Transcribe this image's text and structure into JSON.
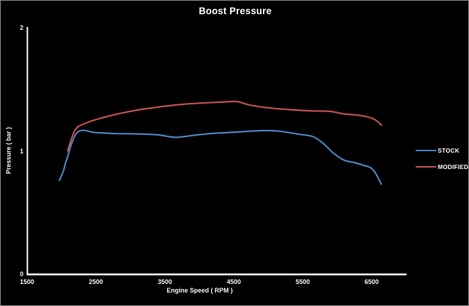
{
  "chart_data": {
    "type": "line",
    "title": "Boost Pressure",
    "xlabel": "Engine Speed ( RPM )",
    "ylabel": "Pressure ( bar )",
    "xlim": [
      1500,
      7000
    ],
    "ylim": [
      0,
      2
    ],
    "x_ticks": [
      1500,
      2500,
      3500,
      4500,
      5500,
      6500
    ],
    "y_ticks": [
      0,
      1,
      2
    ],
    "grid": false,
    "legend_position": "right",
    "background_color": "#010101",
    "axis_color": "#ffffff",
    "text_color": "#f5f5f5",
    "series": [
      {
        "name": "STOCK",
        "color": "#4F81BD",
        "points": [
          [
            1970,
            0.76
          ],
          [
            2030,
            0.84
          ],
          [
            2070,
            0.92
          ],
          [
            2230,
            1.15
          ],
          [
            2500,
            1.148
          ],
          [
            2800,
            1.14
          ],
          [
            3100,
            1.138
          ],
          [
            3400,
            1.13
          ],
          [
            3650,
            1.11
          ],
          [
            3900,
            1.125
          ],
          [
            4150,
            1.14
          ],
          [
            4450,
            1.15
          ],
          [
            4750,
            1.16
          ],
          [
            4950,
            1.165
          ],
          [
            5150,
            1.16
          ],
          [
            5450,
            1.135
          ],
          [
            5650,
            1.115
          ],
          [
            5800,
            1.06
          ],
          [
            5950,
            0.98
          ],
          [
            6100,
            0.925
          ],
          [
            6250,
            0.905
          ],
          [
            6400,
            0.88
          ],
          [
            6480,
            0.865
          ],
          [
            6550,
            0.825
          ],
          [
            6640,
            0.73
          ]
        ]
      },
      {
        "name": "MODIFIED",
        "color": "#C0504D",
        "points": [
          [
            2090,
            1.0
          ],
          [
            2200,
            1.17
          ],
          [
            2350,
            1.225
          ],
          [
            2600,
            1.27
          ],
          [
            2900,
            1.31
          ],
          [
            3200,
            1.34
          ],
          [
            3700,
            1.375
          ],
          [
            4100,
            1.39
          ],
          [
            4400,
            1.398
          ],
          [
            4550,
            1.4
          ],
          [
            4750,
            1.37
          ],
          [
            5000,
            1.35
          ],
          [
            5300,
            1.335
          ],
          [
            5600,
            1.325
          ],
          [
            5900,
            1.32
          ],
          [
            6100,
            1.3
          ],
          [
            6300,
            1.29
          ],
          [
            6480,
            1.27
          ],
          [
            6570,
            1.245
          ],
          [
            6640,
            1.21
          ]
        ]
      }
    ]
  }
}
